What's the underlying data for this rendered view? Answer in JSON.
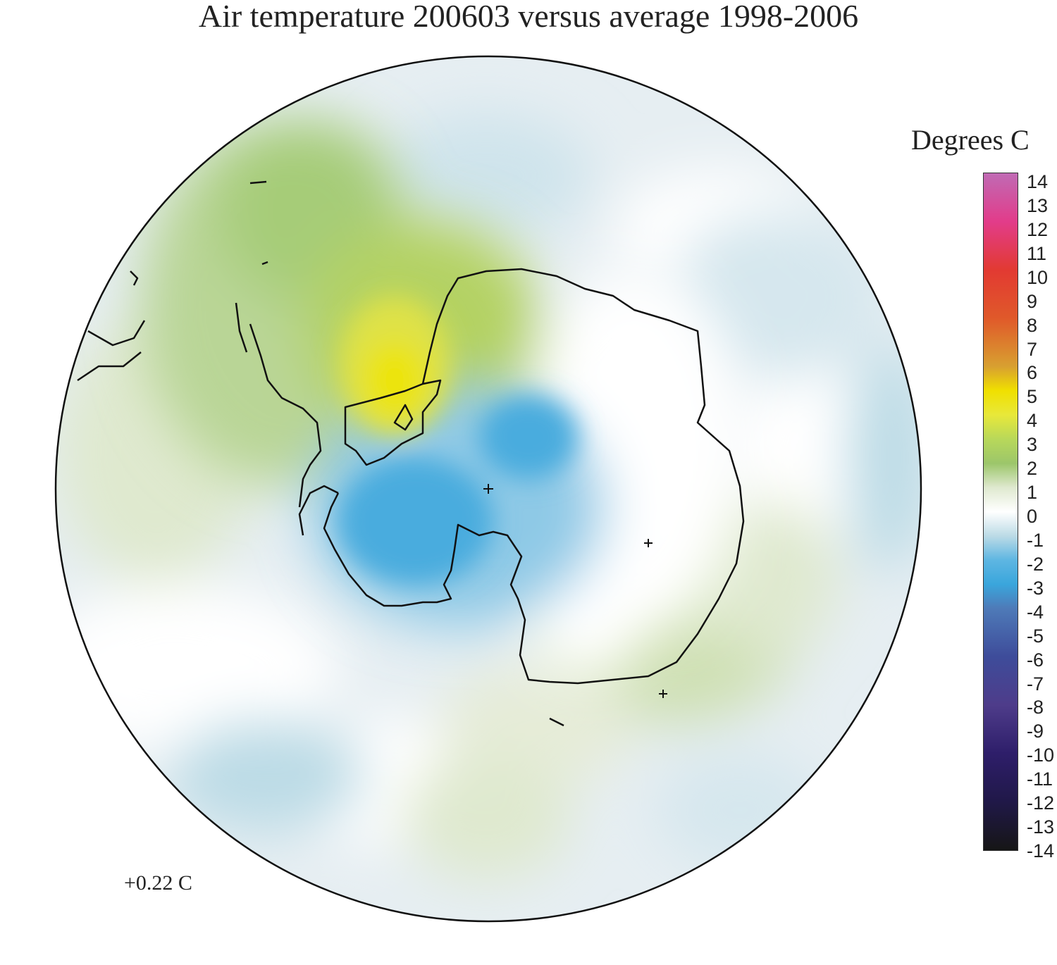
{
  "title": "Air temperature 200603 versus average 1998-2006",
  "unit_label": "Degrees C",
  "mean_label": "+0.22 C",
  "colorbar": {
    "ticks": [
      "14",
      "13",
      "12",
      "11",
      "10",
      "9",
      "8",
      "7",
      "6",
      "5",
      "4",
      "3",
      "2",
      "1",
      "0",
      "-1",
      "-2",
      "-3",
      "-4",
      "-5",
      "-6",
      "-7",
      "-8",
      "-9",
      "-10",
      "-11",
      "-12",
      "-13",
      "-14"
    ],
    "range": [
      -14,
      14
    ],
    "stops": [
      {
        "value": 14,
        "color": "#c06ab4"
      },
      {
        "value": 12,
        "color": "#e23c8a"
      },
      {
        "value": 10,
        "color": "#e23a32"
      },
      {
        "value": 8,
        "color": "#e0592a"
      },
      {
        "value": 6,
        "color": "#d8a030"
      },
      {
        "value": 5,
        "color": "#f0e000"
      },
      {
        "value": 4,
        "color": "#e8e83a"
      },
      {
        "value": 3,
        "color": "#b8d85a"
      },
      {
        "value": 2,
        "color": "#9cc66a"
      },
      {
        "value": 1,
        "color": "#dfe9cf"
      },
      {
        "value": 0,
        "color": "#ffffff"
      },
      {
        "value": -1,
        "color": "#bcdbe6"
      },
      {
        "value": -2,
        "color": "#5eb6e2"
      },
      {
        "value": -3,
        "color": "#3aa6dc"
      },
      {
        "value": -4,
        "color": "#4e7ab8"
      },
      {
        "value": -6,
        "color": "#3e4c9a"
      },
      {
        "value": -8,
        "color": "#4e3c8a"
      },
      {
        "value": -10,
        "color": "#2e1e6a"
      },
      {
        "value": -12,
        "color": "#201848"
      },
      {
        "value": -14,
        "color": "#161616"
      }
    ]
  },
  "map": {
    "projection": "south polar stereographic",
    "region": "Antarctica and Southern Ocean",
    "anomaly_regions": [
      {
        "area": "Antarctic Peninsula / Weddell Sea",
        "anomaly_c": 5
      },
      {
        "area": "South America / Drake Passage",
        "anomaly_c": 2
      },
      {
        "area": "Ross Ice Shelf / South Pole",
        "anomaly_c": -3
      },
      {
        "area": "East Antarctica coast",
        "anomaly_c": 1
      },
      {
        "area": "East Antarctica interior",
        "anomaly_c": 0
      },
      {
        "area": "Southern Ocean",
        "anomaly_c": -1
      }
    ]
  }
}
